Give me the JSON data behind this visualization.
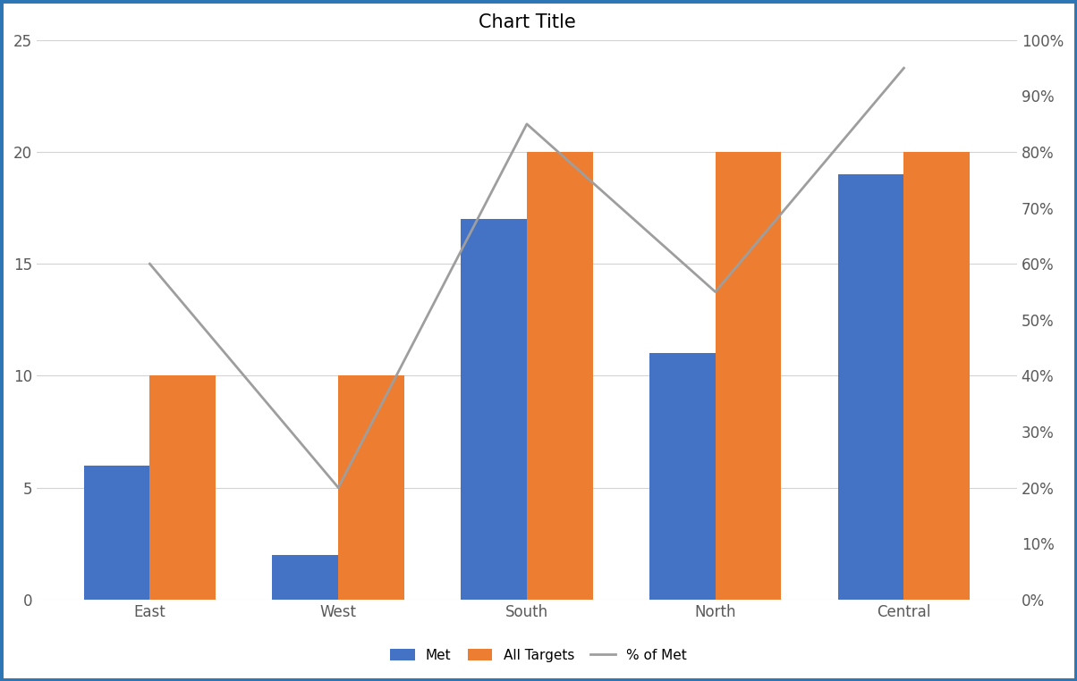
{
  "categories": [
    "East",
    "West",
    "South",
    "North",
    "Central"
  ],
  "met": [
    6,
    2,
    17,
    11,
    19
  ],
  "all_targets": [
    10,
    10,
    20,
    20,
    20
  ],
  "pct_of_met": [
    0.6,
    0.2,
    0.85,
    0.55,
    0.95
  ],
  "bar_color_met": "#4472C4",
  "bar_color_targets": "#ED7D31",
  "line_color": "#9E9E9E",
  "title": "Chart Title",
  "left_ylim": [
    0,
    25
  ],
  "right_ylim": [
    0,
    1.0
  ],
  "left_yticks": [
    0,
    5,
    10,
    15,
    20,
    25
  ],
  "right_yticks": [
    0.0,
    0.1,
    0.2,
    0.3,
    0.4,
    0.5,
    0.6,
    0.7,
    0.8,
    0.9,
    1.0
  ],
  "legend_labels": [
    "Met",
    "All Targets",
    "% of Met"
  ],
  "background_color": "#FFFFFF",
  "border_color": "#2E75B6",
  "grid_color": "#D3D3D3",
  "title_fontsize": 15,
  "tick_fontsize": 12,
  "legend_fontsize": 11,
  "bar_width": 0.35,
  "label_color": "#595959"
}
